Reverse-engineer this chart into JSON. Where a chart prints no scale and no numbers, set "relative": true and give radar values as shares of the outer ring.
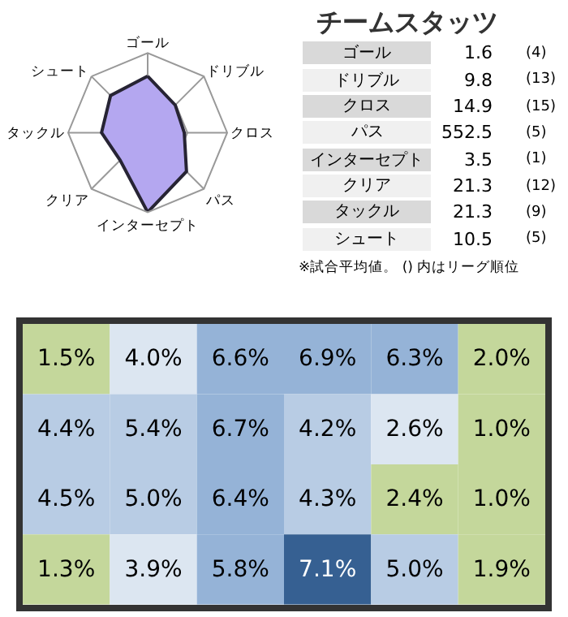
{
  "chart_data": [
    {
      "type": "radar",
      "relative": true,
      "grid": true,
      "categories": [
        "ゴール",
        "ドリブル",
        "クロス",
        "パス",
        "インターセプト",
        "クリア",
        "タックル",
        "シュート"
      ],
      "series": [
        {
          "color": "#b4a7f0",
          "values": [
            0.71,
            0.49,
            0.46,
            0.69,
            1.0,
            0.49,
            0.58,
            0.66
          ]
        }
      ]
    },
    {
      "type": "other",
      "title": "チームスタッツ",
      "y_categories": [
        "ゴール",
        "ドリブル",
        "クロス",
        "パス",
        "インターセプト",
        "クリア",
        "タックル",
        "シュート"
      ],
      "cell_labels": [
        [
          "1.6",
          "(4)"
        ],
        [
          "9.8",
          "(13)"
        ],
        [
          "14.9",
          "(15)"
        ],
        [
          "552.5",
          "(5)"
        ],
        [
          "3.5",
          "(1)"
        ],
        [
          "21.3",
          "(12)"
        ],
        [
          "21.3",
          "(9)"
        ],
        [
          "10.5",
          "(5)"
        ]
      ],
      "annotations": [
        "※試合平均値。 () 内はリーグ順位"
      ]
    },
    {
      "type": "heatmap",
      "categories": [
        null,
        null,
        null,
        null,
        null,
        null
      ],
      "y_categories": [
        null,
        null,
        null,
        null
      ],
      "cells": [
        [
          1.5,
          4.0,
          6.6,
          6.9,
          6.3,
          2.0
        ],
        [
          4.4,
          5.4,
          6.7,
          4.2,
          2.6,
          1.0
        ],
        [
          4.5,
          5.0,
          6.4,
          4.3,
          2.4,
          1.0
        ],
        [
          1.3,
          3.9,
          5.8,
          7.1,
          5.0,
          1.9
        ]
      ],
      "cell_labels": [
        [
          "1.5%",
          "4.0%",
          "6.6%",
          "6.9%",
          "6.3%",
          "2.0%"
        ],
        [
          "4.4%",
          "5.4%",
          "6.7%",
          "4.2%",
          "2.6%",
          "1.0%"
        ],
        [
          "4.5%",
          "5.0%",
          "6.4%",
          "4.3%",
          "2.4%",
          "1.0%"
        ],
        [
          "1.3%",
          "3.9%",
          "5.8%",
          "7.1%",
          "5.0%",
          "1.9%"
        ]
      ],
      "colors": [
        [
          "#c4d79b",
          "#dce6f1",
          "#95b3d7",
          "#95b3d7",
          "#95b3d7",
          "#c4d79b"
        ],
        [
          "#b8cce4",
          "#b8cce4",
          "#95b3d7",
          "#b8cce4",
          "#dce6f1",
          "#c4d79b"
        ],
        [
          "#b8cce4",
          "#b8cce4",
          "#95b3d7",
          "#b8cce4",
          "#c4d79b",
          "#c4d79b"
        ],
        [
          "#c4d79b",
          "#dce6f1",
          "#95b3d7",
          "#366092",
          "#b8cce4",
          "#c4d79b"
        ]
      ]
    }
  ]
}
